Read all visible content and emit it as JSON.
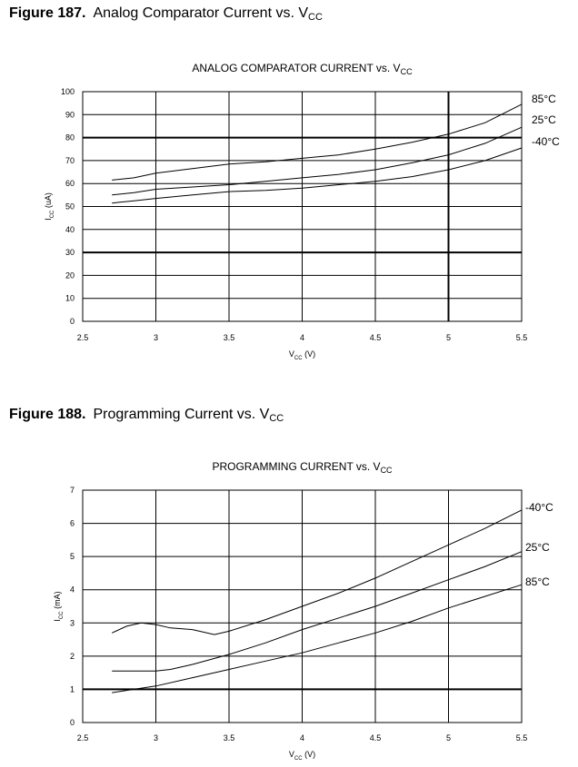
{
  "figures": [
    {
      "heading_number": "Figure 187.",
      "heading_text": "Analog Comparator Current vs. V",
      "heading_sub": "CC"
    },
    {
      "heading_number": "Figure 188.",
      "heading_text": "Programming Current vs. V",
      "heading_sub": "CC"
    }
  ],
  "chart_data": [
    {
      "type": "line",
      "title": "ANALOG COMPARATOR CURRENT vs. V",
      "title_sub": "CC",
      "xlabel": "V",
      "xlabel_sub": "CC",
      "xlabel_suffix": " (V)",
      "ylabel": "I",
      "ylabel_sub": "CC",
      "ylabel_suffix": " (uA)",
      "xlim": [
        2.5,
        5.5
      ],
      "ylim": [
        0,
        100
      ],
      "xticks": [
        "2.5",
        "3",
        "3.5",
        "4",
        "4.5",
        "5",
        "5.5"
      ],
      "yticks": [
        "0",
        "10",
        "20",
        "30",
        "40",
        "50",
        "60",
        "70",
        "80",
        "90",
        "100"
      ],
      "grid": true,
      "heavy_gridlines_x": [
        5
      ],
      "heavy_gridlines_y": [
        30,
        80
      ],
      "series": [
        {
          "name": "85°C",
          "x": [
            2.7,
            2.85,
            3.0,
            3.25,
            3.5,
            3.75,
            4.0,
            4.25,
            4.5,
            4.75,
            5.0,
            5.25,
            5.5
          ],
          "y": [
            61.5,
            62.5,
            64.5,
            66.5,
            68.5,
            69.5,
            71,
            72.5,
            75,
            78,
            81.5,
            86.5,
            94.5
          ]
        },
        {
          "name": "25°C",
          "x": [
            2.7,
            2.85,
            3.0,
            3.25,
            3.5,
            3.75,
            4.0,
            4.25,
            4.5,
            4.75,
            5.0,
            5.25,
            5.5
          ],
          "y": [
            55,
            56,
            57.5,
            58.5,
            59.5,
            61,
            62.5,
            64,
            66,
            69,
            72.5,
            77.5,
            84.5
          ]
        },
        {
          "name": "-40°C",
          "x": [
            2.7,
            2.85,
            3.0,
            3.25,
            3.5,
            3.75,
            4.0,
            4.25,
            4.5,
            4.75,
            5.0,
            5.25,
            5.5
          ],
          "y": [
            51.5,
            52.5,
            53.5,
            55,
            56.5,
            57,
            58,
            59.5,
            61,
            63,
            66,
            70,
            75.5
          ]
        }
      ]
    },
    {
      "type": "line",
      "title": "PROGRAMMING CURRENT vs. V",
      "title_sub": "CC",
      "xlabel": "V",
      "xlabel_sub": "CC",
      "xlabel_suffix": " (V)",
      "ylabel": "I",
      "ylabel_sub": "CC",
      "ylabel_suffix": " (mA)",
      "xlim": [
        2.5,
        5.5
      ],
      "ylim": [
        0,
        7
      ],
      "xticks": [
        "2.5",
        "3",
        "3.5",
        "4",
        "4.5",
        "5",
        "5.5"
      ],
      "yticks": [
        "0",
        "1",
        "2",
        "3",
        "4",
        "5",
        "6",
        "7"
      ],
      "grid": true,
      "heavy_gridlines_x": [],
      "heavy_gridlines_y": [
        1
      ],
      "series": [
        {
          "name": "-40°C",
          "x": [
            2.7,
            2.8,
            2.9,
            3.0,
            3.1,
            3.25,
            3.4,
            3.5,
            3.75,
            4.0,
            4.25,
            4.5,
            4.75,
            5.0,
            5.25,
            5.5
          ],
          "y": [
            2.7,
            2.9,
            3.0,
            2.95,
            2.85,
            2.8,
            2.65,
            2.75,
            3.1,
            3.5,
            3.9,
            4.35,
            4.85,
            5.35,
            5.85,
            6.4
          ]
        },
        {
          "name": "25°C",
          "x": [
            2.7,
            2.8,
            2.9,
            3.0,
            3.1,
            3.25,
            3.5,
            3.75,
            4.0,
            4.25,
            4.5,
            4.75,
            5.0,
            5.25,
            5.5
          ],
          "y": [
            1.55,
            1.55,
            1.55,
            1.55,
            1.6,
            1.75,
            2.05,
            2.4,
            2.8,
            3.15,
            3.5,
            3.9,
            4.3,
            4.7,
            5.15
          ]
        },
        {
          "name": "85°C",
          "x": [
            2.7,
            2.85,
            3.0,
            3.25,
            3.5,
            3.75,
            4.0,
            4.25,
            4.5,
            4.75,
            5.0,
            5.25,
            5.5
          ],
          "y": [
            0.9,
            1.0,
            1.1,
            1.35,
            1.6,
            1.85,
            2.1,
            2.4,
            2.7,
            3.05,
            3.45,
            3.8,
            4.15
          ]
        }
      ]
    }
  ]
}
